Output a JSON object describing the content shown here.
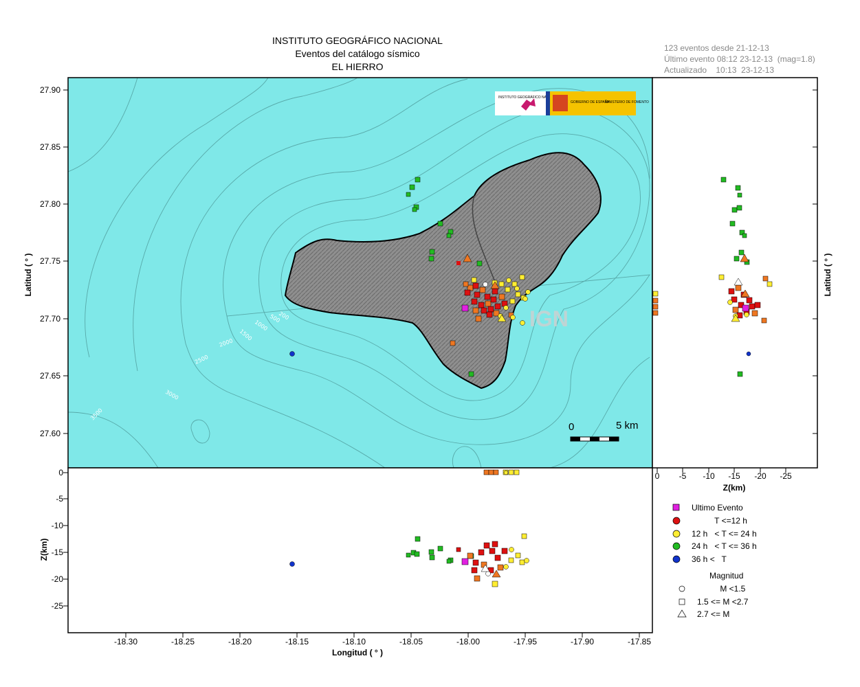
{
  "header": {
    "title1": "INSTITUTO GEOGRÁFICO NACIONAL",
    "title2": "Eventos del catálogo sísmico",
    "title3": "EL HIERRO"
  },
  "info": {
    "line1": "123 eventos desde 21-12-13",
    "line2": "Último evento 08:12 23-12-13  (mag=1.8)",
    "line3": "Actualizado    10:13  23-12-13"
  },
  "logos": {
    "ign": "INSTITUTO GEOGRÁFICO NACIONAL",
    "gov": "GOBIERNO DE ESPAÑA",
    "ministry": "MINISTERIO DE FOMENTO"
  },
  "map": {
    "lat_label": "Latitud ( ° )",
    "lon_label": "Longitud ( ° )",
    "z_label": "Z(km)",
    "lat_ticks": [
      "27.90",
      "27.85",
      "27.80",
      "27.75",
      "27.70",
      "27.65",
      "27.60"
    ],
    "lon_ticks": [
      "-18.30",
      "-18.25",
      "-18.20",
      "-18.15",
      "-18.10",
      "-18.05",
      "-18.00",
      "-17.95",
      "-17.90",
      "-17.85"
    ],
    "z_ticks_side": [
      "0",
      "-5",
      "-10",
      "-15",
      "-20",
      "-25"
    ],
    "z_ticks_bottom": [
      "0",
      "-5",
      "-10",
      "-15",
      "-20",
      "-25"
    ],
    "scale_zero": "0",
    "scale_label": "5 km",
    "watermark": "IGN",
    "contours": [
      "200",
      "500",
      "1000",
      "1500",
      "2000",
      "2500",
      "3000",
      "3500"
    ],
    "colors": {
      "sea": "#7fe8e8",
      "land": "#8a8a8a",
      "last": "#e020e0",
      "t12": "#dd1111",
      "t24": "#ffee33",
      "t36": "#22bb22",
      "older": "#1133cc",
      "recent_orange": "#ee7722"
    }
  },
  "legend": {
    "last": "Ultimo Evento",
    "t12": "          T <=12 h",
    "t24": "12 h   < T <= 24 h",
    "t36": "24 h   < T <= 36 h",
    "older": "36 h <   T",
    "mag_title": "Magnitud",
    "m1": "          M <1.5",
    "m2": "1.5 <= M <2.7",
    "m3": "2.7 <= M"
  },
  "chart_data": {
    "type": "scatter",
    "title": "Eventos del catálogo sísmico",
    "xlabel": "Longitud ( ° )",
    "ylabel": "Latitud ( ° )",
    "xlim": [
      -18.35,
      -17.84
    ],
    "ylim": [
      27.58,
      27.92
    ],
    "zlim": [
      0,
      -30
    ],
    "series": [
      {
        "name": "24 h < T <= 36 h",
        "points": [
          {
            "lon": -18.045,
            "lat": 27.821,
            "z": -12.5
          },
          {
            "lon": -18.049,
            "lat": 27.814,
            "z": -15
          },
          {
            "lon": -18.051,
            "lat": 27.808,
            "z": -16
          },
          {
            "lon": -18.046,
            "lat": 27.797,
            "z": -15.5
          },
          {
            "lon": -18.047,
            "lat": 27.795,
            "z": -15
          },
          {
            "lon": -18.034,
            "lat": 27.783,
            "z": -15
          },
          {
            "lon": -18.025,
            "lat": 27.775,
            "z": -16.5
          },
          {
            "lon": -18.026,
            "lat": 27.772,
            "z": -16
          },
          {
            "lon": -18.042,
            "lat": 27.76,
            "z": -14
          },
          {
            "lon": -18.042,
            "lat": 27.755,
            "z": -16
          },
          {
            "lon": -18.011,
            "lat": 27.748,
            "z": -15
          },
          {
            "lon": -17.998,
            "lat": 27.652,
            "z": -15
          }
        ]
      },
      {
        "name": "36 h < T",
        "points": [
          {
            "lon": -18.155,
            "lat": 27.67,
            "z": -17.3
          }
        ]
      },
      {
        "name": "Ultimo Evento",
        "points": [
          {
            "lon": -18.003,
            "lat": 27.71,
            "z": -17
          }
        ]
      }
    ]
  }
}
